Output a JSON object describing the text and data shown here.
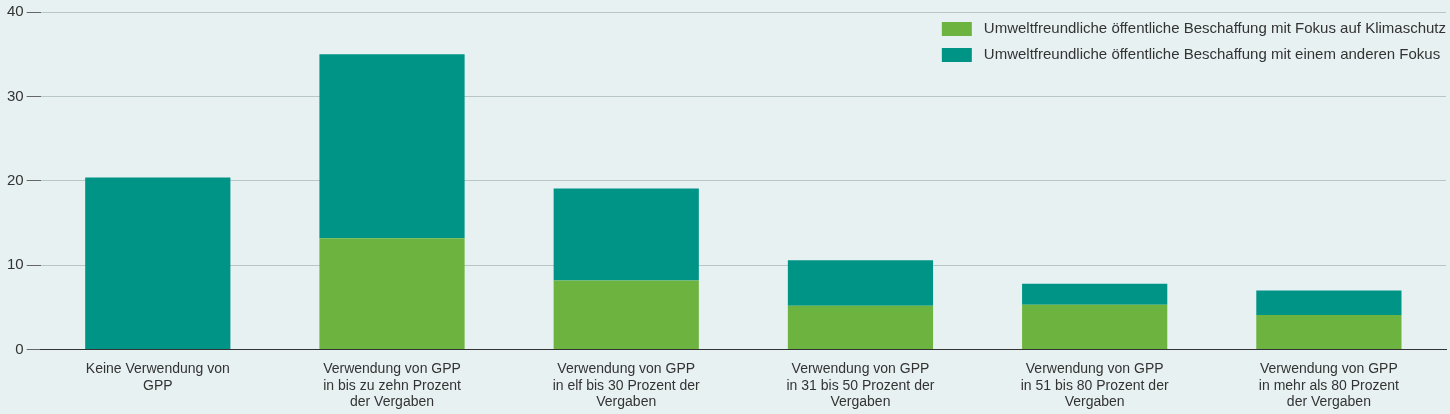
{
  "chart_data": {
    "type": "bar",
    "stacked": true,
    "categories": [
      "Keine Verwendung von GPP",
      "Verwendung von GPP in bis zu zehn Prozent der Vergaben",
      "Verwendung von GPP in elf bis 30 Prozent der Vergaben",
      "Verwendung von GPP in 31 bis 50 Prozent der Vergaben",
      "Verwendung von GPP in 51 bis 80 Prozent der Vergaben",
      "Verwendung von GPP in mehr als 80 Prozent der Vergaben"
    ],
    "series": [
      {
        "name": "Umweltfreundliche öffentliche Beschaffung mit Fokus auf Klimaschutz",
        "color": "#6db33f",
        "values": [
          0,
          13.2,
          8.2,
          5.2,
          5.3,
          4.1
        ]
      },
      {
        "name": "Umweltfreundliche öffentliche Beschaffung mit einem anderen Fokus",
        "color": "#009487",
        "values": [
          20.4,
          21.8,
          10.9,
          5.4,
          2.5,
          2.9
        ]
      }
    ],
    "ylim": [
      0,
      40
    ],
    "yticks": [
      0,
      10,
      20,
      30,
      40
    ],
    "grid": "y",
    "legend": "top right"
  }
}
